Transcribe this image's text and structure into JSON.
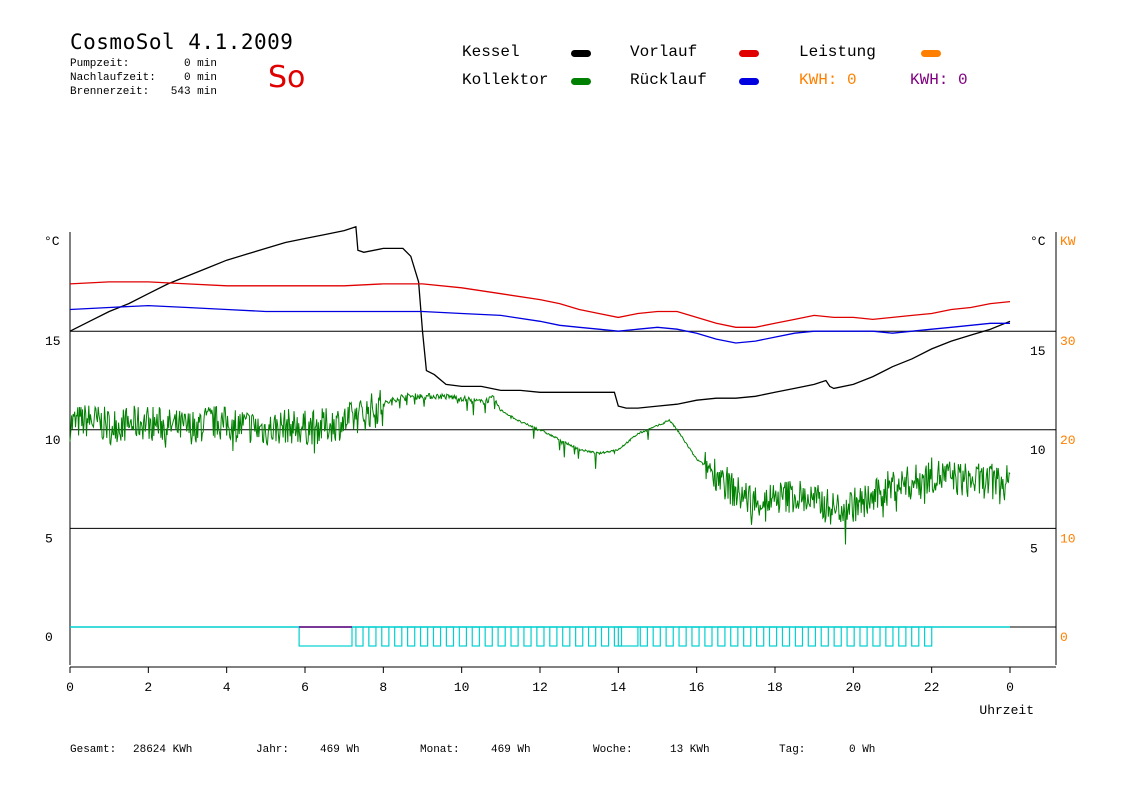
{
  "header": {
    "title": "CosmoSol 4.1.2009",
    "day": "So",
    "stats": [
      {
        "label": "Pumpzeit:",
        "value": "0 min"
      },
      {
        "label": "Nachlaufzeit:",
        "value": "0 min"
      },
      {
        "label": "Brennerzeit:",
        "value": "543 min"
      }
    ]
  },
  "legend": {
    "items": [
      {
        "label": "Kessel",
        "color": "#000000"
      },
      {
        "label": "Vorlauf",
        "color": "#e00000"
      },
      {
        "label": "Leistung",
        "color": "#ff8000"
      },
      {
        "label": "Kollektor",
        "color": "#008000"
      },
      {
        "label": "Rücklauf",
        "color": "#0000e0"
      }
    ],
    "kwh_orange": "KWH: 0",
    "kwh_purple": "KWH: 0",
    "kwh_orange_color": "#ff8000",
    "kwh_purple_color": "#800080"
  },
  "footer": {
    "items": [
      {
        "label": "Gesamt:",
        "value": "28624 KWh"
      },
      {
        "label": "Jahr:",
        "value": "469 Wh"
      },
      {
        "label": "Monat:",
        "value": "469 Wh"
      },
      {
        "label": "Woche:",
        "value": "13 KWh"
      },
      {
        "label": "Tag:",
        "value": "0 Wh"
      }
    ]
  },
  "chart_data": {
    "type": "line",
    "xlabel": "Uhrzeit",
    "xlim": [
      0,
      24
    ],
    "x_ticks": [
      "0",
      "2",
      "4",
      "6",
      "8",
      "10",
      "12",
      "14",
      "16",
      "18",
      "20",
      "22",
      "0"
    ],
    "left_unit": "°C",
    "left_ticks": [
      "15",
      "10",
      "5",
      "0"
    ],
    "right_unit": "°C",
    "right_ticks": [
      "15",
      "10",
      "5"
    ],
    "power_unit": "KW",
    "power_ticks": [
      "30",
      "20",
      "10",
      "0"
    ],
    "ylim": [
      0,
      20
    ],
    "grid_lines": [
      0,
      5,
      10,
      15
    ],
    "series": [
      {
        "name": "Kessel",
        "color": "#000000",
        "x": [
          0,
          0.5,
          1,
          1.5,
          2,
          2.5,
          3,
          3.5,
          4,
          4.5,
          5,
          5.5,
          6,
          6.5,
          7,
          7.3,
          7.35,
          7.5,
          8,
          8.5,
          8.7,
          8.9,
          9.0,
          9.1,
          9.3,
          9.6,
          10,
          10.5,
          11,
          11.5,
          12,
          12.5,
          13,
          13.5,
          13.9,
          14.0,
          14.2,
          14.5,
          15,
          15.5,
          16,
          16.5,
          17,
          17.5,
          18,
          18.5,
          19,
          19.3,
          19.4,
          19.5,
          20,
          20.5,
          21,
          21.5,
          22,
          22.5,
          23,
          23.5,
          24
        ],
        "y": [
          15.0,
          15.5,
          16.0,
          16.4,
          16.9,
          17.4,
          17.8,
          18.2,
          18.6,
          18.9,
          19.2,
          19.5,
          19.7,
          19.9,
          20.1,
          20.3,
          19.1,
          19.0,
          19.2,
          19.2,
          18.8,
          17.5,
          15.0,
          13.0,
          12.8,
          12.3,
          12.2,
          12.2,
          12.0,
          12.0,
          11.9,
          11.9,
          11.9,
          11.9,
          11.9,
          11.2,
          11.1,
          11.1,
          11.2,
          11.3,
          11.5,
          11.6,
          11.6,
          11.7,
          11.9,
          12.1,
          12.3,
          12.5,
          12.2,
          12.1,
          12.3,
          12.7,
          13.2,
          13.6,
          14.1,
          14.5,
          14.8,
          15.1,
          15.5
        ]
      },
      {
        "name": "Vorlauf",
        "color": "#e00000",
        "x": [
          0,
          1,
          2,
          3,
          4,
          5,
          6,
          7,
          8,
          9,
          10,
          11,
          12,
          12.5,
          13,
          13.5,
          14,
          14.5,
          15,
          15.5,
          16,
          16.5,
          17,
          17.5,
          18,
          18.5,
          19,
          19.5,
          20,
          20.5,
          21,
          21.5,
          22,
          22.5,
          23,
          23.5,
          24
        ],
        "y": [
          17.4,
          17.5,
          17.5,
          17.4,
          17.3,
          17.3,
          17.3,
          17.3,
          17.4,
          17.4,
          17.2,
          16.9,
          16.6,
          16.4,
          16.1,
          15.9,
          15.7,
          15.9,
          16.0,
          16.0,
          15.7,
          15.4,
          15.2,
          15.2,
          15.4,
          15.6,
          15.8,
          15.7,
          15.7,
          15.6,
          15.7,
          15.8,
          15.9,
          16.1,
          16.2,
          16.4,
          16.5
        ]
      },
      {
        "name": "Rücklauf",
        "color": "#0000e0",
        "x": [
          0,
          1,
          2,
          3,
          4,
          5,
          6,
          7,
          8,
          9,
          10,
          11,
          12,
          12.5,
          13,
          13.5,
          14,
          14.5,
          15,
          15.5,
          16,
          16.5,
          17,
          17.5,
          18,
          18.5,
          19,
          19.5,
          20,
          20.5,
          21,
          21.5,
          22,
          22.5,
          23,
          23.5,
          24
        ],
        "y": [
          16.1,
          16.2,
          16.3,
          16.2,
          16.1,
          16.0,
          16.0,
          16.0,
          16.0,
          16.0,
          15.9,
          15.8,
          15.5,
          15.3,
          15.2,
          15.1,
          15.0,
          15.1,
          15.2,
          15.1,
          14.9,
          14.6,
          14.4,
          14.5,
          14.7,
          14.9,
          15.0,
          15.0,
          15.0,
          15.0,
          14.9,
          15.0,
          15.1,
          15.2,
          15.3,
          15.4,
          15.4
        ]
      },
      {
        "name": "Kollektor",
        "color": "#008000",
        "noise": true,
        "x": [
          0,
          0.5,
          1,
          1.5,
          2,
          2.5,
          3,
          3.5,
          4,
          4.5,
          5,
          5.5,
          6,
          6.5,
          7,
          7.5,
          8,
          8.5,
          9,
          9.5,
          10,
          10.5,
          10.8,
          11,
          11.5,
          12,
          12.5,
          13,
          13.5,
          14,
          14.5,
          15,
          15.3,
          15.5,
          16,
          16.5,
          17,
          17.5,
          18,
          18.5,
          19,
          19.5,
          20,
          20.5,
          21,
          21.5,
          22,
          22.5,
          23,
          23.5,
          24
        ],
        "y": [
          10.3,
          10.5,
          10.2,
          10.3,
          10.4,
          10.2,
          10.1,
          10.4,
          10.3,
          10.2,
          10.0,
          10.2,
          10.1,
          10.2,
          10.4,
          10.8,
          11.3,
          11.7,
          11.7,
          11.7,
          11.6,
          11.4,
          11.6,
          11.0,
          10.4,
          10.0,
          9.5,
          9.0,
          8.8,
          9.0,
          9.8,
          10.2,
          10.5,
          10.0,
          8.5,
          7.8,
          6.8,
          6.4,
          6.5,
          6.7,
          6.4,
          6.0,
          6.2,
          6.5,
          7.2,
          7.3,
          7.7,
          7.6,
          7.4,
          7.4,
          7.3
        ]
      },
      {
        "name": "Leistung",
        "color": "#ff8000",
        "x": [
          0,
          24
        ],
        "y": [
          0,
          0
        ]
      }
    ],
    "pump_pulses": {
      "color": "#00d0d0",
      "segments": [
        [
          5.85,
          7.2
        ],
        [
          14.0,
          14.5
        ]
      ],
      "pulse_start": 7.3,
      "pulse_end": 22.0,
      "pulse_period": 0.33,
      "height": -1.0
    }
  }
}
